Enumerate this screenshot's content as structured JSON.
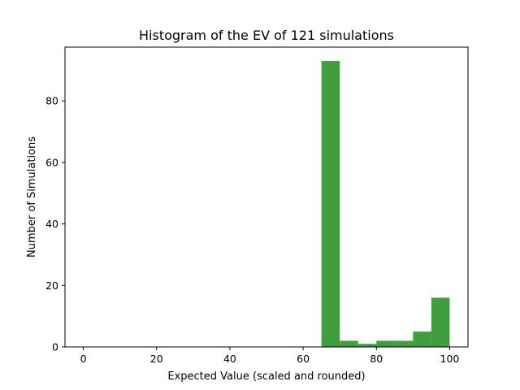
{
  "chart_data": {
    "type": "bar",
    "title": "Histogram of the EV of 121 simulations",
    "xlabel": "Expected Value (scaled and rounded)",
    "ylabel": "Number of Simulations",
    "xlim": [
      -5,
      105
    ],
    "ylim": [
      0,
      97.5
    ],
    "xticks": [
      "0",
      "20",
      "40",
      "60",
      "80",
      "100"
    ],
    "yticks": [
      "0",
      "20",
      "40",
      "60",
      "80"
    ],
    "bins": [
      {
        "start": 65,
        "end": 70,
        "count": 93
      },
      {
        "start": 70,
        "end": 75,
        "count": 2
      },
      {
        "start": 75,
        "end": 80,
        "count": 1
      },
      {
        "start": 80,
        "end": 85,
        "count": 2
      },
      {
        "start": 85,
        "end": 90,
        "count": 2
      },
      {
        "start": 90,
        "end": 95,
        "count": 5
      },
      {
        "start": 95,
        "end": 100,
        "count": 16
      }
    ],
    "bar_color": "#3f9f3f",
    "grid": false,
    "legend": "none"
  }
}
